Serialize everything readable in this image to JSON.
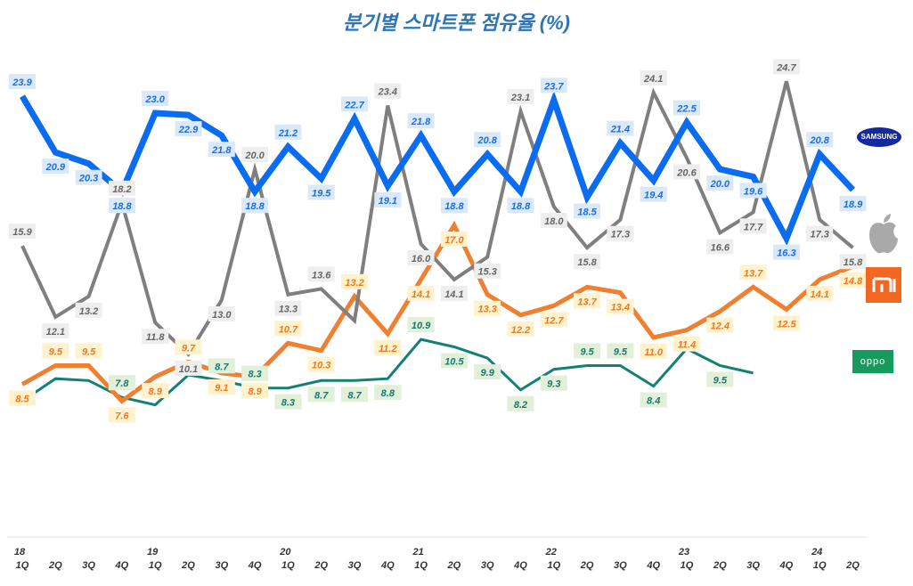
{
  "chart_data": {
    "type": "line",
    "title": "분기별 스마트폰 점유율 (%)",
    "x": [
      "18 1Q",
      "2Q",
      "3Q",
      "4Q",
      "19 1Q",
      "2Q",
      "3Q",
      "4Q",
      "20 1Q",
      "2Q",
      "3Q",
      "4Q",
      "21 1Q",
      "2Q",
      "3Q",
      "4Q",
      "22 1Q",
      "2Q",
      "3Q",
      "4Q",
      "23 1Q",
      "2Q",
      "3Q",
      "4Q",
      "24 1Q",
      "2Q"
    ],
    "x_year_labels": [
      "18",
      "",
      "",
      "",
      "19",
      "",
      "",
      "",
      "20",
      "",
      "",
      "",
      "21",
      "",
      "",
      "",
      "22",
      "",
      "",
      "",
      "23",
      "",
      "",
      "",
      "24",
      ""
    ],
    "x_quarter_labels": [
      "1Q",
      "2Q",
      "3Q",
      "4Q",
      "1Q",
      "2Q",
      "3Q",
      "4Q",
      "1Q",
      "2Q",
      "3Q",
      "4Q",
      "1Q",
      "2Q",
      "3Q",
      "4Q",
      "1Q",
      "2Q",
      "3Q",
      "4Q",
      "1Q",
      "2Q",
      "3Q",
      "4Q",
      "1Q",
      "2Q"
    ],
    "ylim": [
      0,
      29
    ],
    "grid": false,
    "legend": "right (brand logos)",
    "series": [
      {
        "name": "SAMSUNG",
        "logo": "samsung",
        "color": "#0a6cf0",
        "label_bg": "#dbe8f8",
        "label_color": "#1a6fe0",
        "values": [
          23.9,
          20.9,
          20.3,
          18.8,
          23.0,
          22.9,
          21.8,
          18.8,
          21.2,
          19.5,
          22.7,
          19.1,
          21.8,
          18.8,
          20.8,
          18.8,
          23.7,
          18.5,
          21.4,
          19.4,
          22.5,
          20.0,
          19.6,
          16.3,
          20.8,
          18.9
        ],
        "labeled": [
          1,
          1,
          1,
          1,
          1,
          1,
          1,
          1,
          1,
          1,
          1,
          1,
          1,
          1,
          1,
          1,
          1,
          1,
          1,
          1,
          1,
          1,
          1,
          1,
          1,
          1
        ]
      },
      {
        "name": "Apple",
        "logo": "apple",
        "color": "#7f7f7f",
        "label_bg": "#eeeeee",
        "label_color": "#666666",
        "values": [
          15.9,
          12.1,
          13.2,
          18.2,
          11.8,
          10.1,
          13.0,
          20.0,
          13.3,
          13.6,
          11.9,
          23.4,
          16.0,
          14.1,
          15.3,
          23.1,
          18.0,
          15.8,
          17.3,
          24.1,
          20.6,
          16.6,
          17.7,
          24.7,
          17.3,
          15.8
        ],
        "labeled": [
          1,
          1,
          1,
          1,
          1,
          1,
          1,
          1,
          1,
          1,
          0,
          1,
          1,
          1,
          1,
          1,
          1,
          1,
          1,
          1,
          1,
          1,
          1,
          1,
          1,
          1
        ]
      },
      {
        "name": "Xiaomi",
        "logo": "mi",
        "color": "#f08030",
        "label_bg": "#fff2cc",
        "label_color": "#f07820",
        "values": [
          8.5,
          9.5,
          9.5,
          7.6,
          8.9,
          9.7,
          9.1,
          8.9,
          10.7,
          10.3,
          13.2,
          11.2,
          14.1,
          17.0,
          13.3,
          12.2,
          12.7,
          13.7,
          13.4,
          11.0,
          11.4,
          12.4,
          13.7,
          12.5,
          14.1,
          14.8
        ],
        "labeled": [
          1,
          1,
          1,
          1,
          1,
          1,
          1,
          1,
          1,
          1,
          1,
          1,
          1,
          1,
          1,
          1,
          1,
          1,
          1,
          1,
          1,
          1,
          1,
          1,
          1,
          1
        ]
      },
      {
        "name": "OPPO",
        "logo": "oppo",
        "color": "#138075",
        "label_bg": "#e2f0d9",
        "label_color": "#17786c",
        "values": [
          7.6,
          8.8,
          8.7,
          7.8,
          7.4,
          9.0,
          8.7,
          8.3,
          8.3,
          8.7,
          8.7,
          8.8,
          10.9,
          10.5,
          9.9,
          8.2,
          9.3,
          9.5,
          9.5,
          8.4,
          10.4,
          9.5,
          9.1,
          null,
          null,
          null
        ],
        "labeled": [
          0,
          0,
          0,
          1,
          0,
          0,
          1,
          1,
          1,
          1,
          1,
          1,
          1,
          1,
          1,
          1,
          1,
          1,
          1,
          1,
          0,
          1,
          0,
          0,
          0,
          0
        ]
      }
    ]
  },
  "legend_logos": {
    "samsung": "SAMSUNG",
    "oppo": "oppo"
  }
}
